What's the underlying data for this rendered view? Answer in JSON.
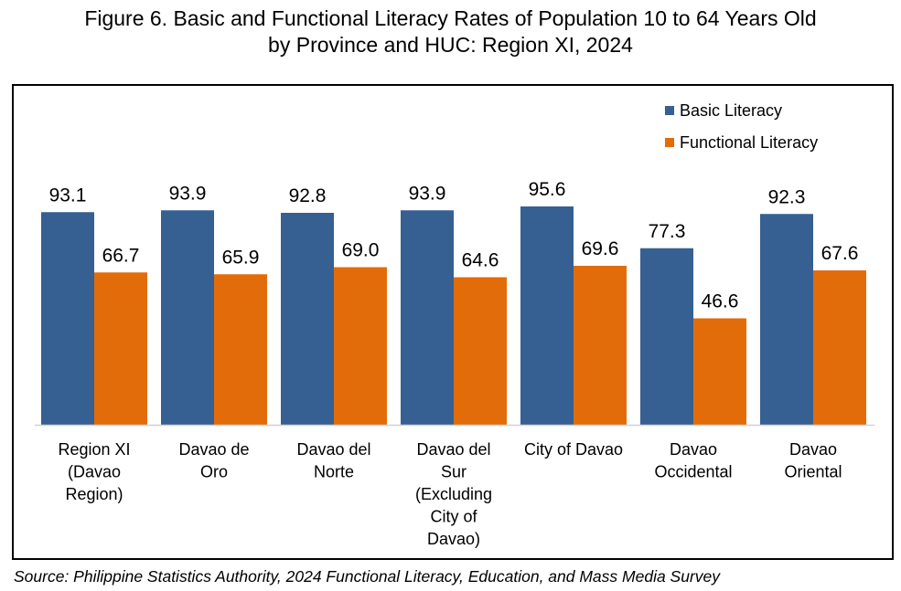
{
  "title_line1": "Figure 6. Basic and Functional Literacy Rates of Population 10 to 64 Years Old",
  "title_line2": "by Province and HUC: Region XI, 2024",
  "source": "Source: Philippine Statistics Authority, 2024 Functional Literacy, Education, and Mass Media Survey",
  "chart_data": {
    "type": "bar",
    "title": "Figure 6. Basic and Functional Literacy Rates of Population 10 to 64 Years Old by Province and HUC: Region XI, 2024",
    "categories": [
      [
        "Region XI",
        "(Davao",
        "Region)"
      ],
      [
        "Davao de",
        "Oro"
      ],
      [
        "Davao del",
        "Norte"
      ],
      [
        "Davao del",
        "Sur",
        "(Excluding",
        "City of",
        "Davao)"
      ],
      [
        "City of Davao"
      ],
      [
        "Davao",
        "Occidental"
      ],
      [
        "Davao",
        "Oriental"
      ]
    ],
    "series": [
      {
        "name": "Basic Literacy",
        "color": "#365f92",
        "values": [
          93.1,
          93.9,
          92.8,
          93.9,
          95.6,
          77.3,
          92.3
        ]
      },
      {
        "name": "Functional Literacy",
        "color": "#e36c0a",
        "values": [
          66.7,
          65.9,
          69.0,
          64.6,
          69.6,
          46.6,
          67.6
        ]
      }
    ],
    "ylim": [
      0,
      100
    ],
    "grid": false,
    "legend_position": "top-right",
    "xlabel": "",
    "ylabel": ""
  }
}
